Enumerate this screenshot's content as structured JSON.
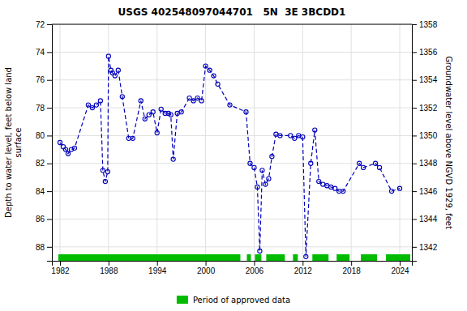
{
  "chart_data": {
    "type": "line",
    "title": "USGS 402548097044701   5N  3E 3BCDD1",
    "ylabel": "Depth to water level, feet below land\nsurface",
    "y2label": "Groundwater level above NGVD 1929, feet",
    "xlim": [
      1981,
      2025.5
    ],
    "xticks": [
      1982,
      1988,
      1994,
      2000,
      2006,
      2012,
      2018,
      2024
    ],
    "ylim": [
      89,
      72
    ],
    "yticks": [
      72,
      74,
      76,
      78,
      80,
      82,
      84,
      86,
      88
    ],
    "y2lim": [
      1341,
      1358
    ],
    "y2ticks": [
      1358,
      1356,
      1354,
      1352,
      1350,
      1348,
      1346,
      1344,
      1342
    ],
    "grid": true,
    "legend": "bottom",
    "x": [
      1982.0,
      1982.4,
      1982.7,
      1983.0,
      1983.4,
      1983.8,
      1985.5,
      1986.0,
      1986.5,
      1987.0,
      1987.3,
      1987.6,
      1987.9,
      1988.0,
      1988.3,
      1988.5,
      1988.8,
      1989.2,
      1989.7,
      1990.5,
      1991.0,
      1992.0,
      1992.5,
      1993.0,
      1993.5,
      1994.0,
      1994.5,
      1995.0,
      1995.4,
      1995.7,
      1996.0,
      1996.5,
      1997.0,
      1998.0,
      1998.5,
      1999.0,
      1999.5,
      2000.0,
      2000.5,
      2001.0,
      2001.5,
      2003.0,
      2005.0,
      2005.5,
      2006.0,
      2006.4,
      2006.7,
      2007.0,
      2007.4,
      2007.8,
      2008.2,
      2008.7,
      2009.2,
      2010.5,
      2011.0,
      2011.5,
      2012.0,
      2012.4,
      2013.0,
      2013.5,
      2014.0,
      2014.5,
      2015.0,
      2015.5,
      2016.0,
      2016.5,
      2017.0,
      2019.0,
      2019.5,
      2021.0,
      2021.5,
      2023.0,
      2024.0
    ],
    "series": [
      {
        "color": "#0000bb",
        "marker": "circle",
        "line_style": "dashed",
        "values": [
          80.5,
          80.8,
          81.0,
          81.3,
          81.0,
          80.9,
          77.8,
          78.0,
          77.8,
          77.5,
          82.5,
          83.3,
          82.6,
          74.3,
          75.3,
          75.5,
          75.7,
          75.3,
          77.2,
          80.2,
          80.2,
          77.5,
          78.8,
          78.5,
          78.3,
          79.8,
          78.1,
          78.4,
          78.4,
          78.5,
          81.7,
          78.4,
          78.3,
          77.3,
          77.5,
          77.3,
          77.5,
          75.0,
          75.3,
          75.7,
          76.3,
          77.8,
          78.3,
          82.0,
          82.3,
          83.7,
          88.3,
          82.5,
          83.5,
          83.1,
          81.5,
          79.9,
          80.0,
          80.0,
          80.2,
          80.0,
          80.1,
          88.7,
          82.0,
          79.6,
          83.3,
          83.5,
          83.6,
          83.7,
          83.8,
          84.0,
          84.0,
          82.0,
          82.3,
          82.0,
          82.3,
          84.0,
          83.8
        ]
      }
    ],
    "periods": {
      "name": "Period of approved data",
      "color": "#00bb00",
      "ranges": [
        [
          1981.8,
          2004.3
        ],
        [
          2005.1,
          2005.6
        ],
        [
          2006.1,
          2006.9
        ],
        [
          2007.5,
          2009.8
        ],
        [
          2010.8,
          2011.4
        ],
        [
          2013.2,
          2015.2
        ],
        [
          2016.2,
          2017.8
        ],
        [
          2019.2,
          2021.2
        ],
        [
          2022.3,
          2025.3
        ]
      ]
    }
  }
}
